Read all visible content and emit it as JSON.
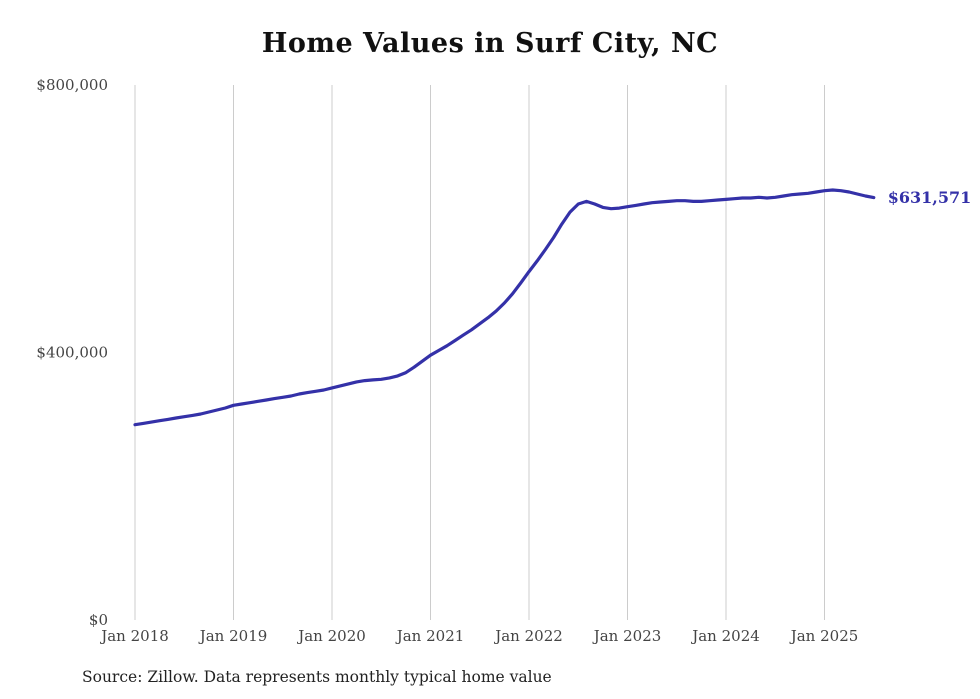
{
  "title": "Home Values in Surf City, NC",
  "source_note": "Source: Zillow. Data represents monthly typical home value",
  "chart_data": {
    "type": "line",
    "title": "Home Values in Surf City, NC",
    "series_name": "Typical home value (monthly)",
    "x_start": "Jan 2018",
    "x_end": "Jul 2025",
    "x_tick_labels": [
      "Jan 2018",
      "Jan 2019",
      "Jan 2020",
      "Jan 2021",
      "Jan 2022",
      "Jan 2023",
      "Jan 2024",
      "Jan 2025"
    ],
    "y_ticks": [
      0,
      400000,
      800000
    ],
    "y_tick_labels": [
      "$0",
      "$400,000",
      "$800,000"
    ],
    "ylim": [
      0,
      800000
    ],
    "grid": "vertical-only",
    "legend": "none",
    "line_color": "#3431a8",
    "gridline_color": "#cccccc",
    "end_label": "$631,571",
    "end_value": 631571,
    "source": "Zillow",
    "monthly_values": [
      292000,
      294000,
      296000,
      298000,
      300000,
      302000,
      304000,
      306000,
      308000,
      311000,
      314000,
      317000,
      321000,
      323000,
      325000,
      327000,
      329000,
      331000,
      333000,
      335000,
      338000,
      340000,
      342000,
      344000,
      347000,
      350000,
      353000,
      356000,
      358000,
      359000,
      360000,
      362000,
      365000,
      370000,
      378000,
      387000,
      396000,
      403000,
      410000,
      418000,
      426000,
      434000,
      443000,
      452000,
      462000,
      474000,
      488000,
      504000,
      521000,
      537000,
      554000,
      572000,
      592000,
      610000,
      622000,
      626000,
      622000,
      617000,
      615000,
      616000,
      618000,
      620000,
      622000,
      624000,
      625000,
      626000,
      627000,
      627000,
      626000,
      626000,
      627000,
      628000,
      629000,
      630000,
      631000,
      631000,
      632000,
      631000,
      632000,
      634000,
      636000,
      637000,
      638000,
      640000,
      642000,
      643000,
      642000,
      640000,
      637000,
      634000,
      631571
    ]
  }
}
